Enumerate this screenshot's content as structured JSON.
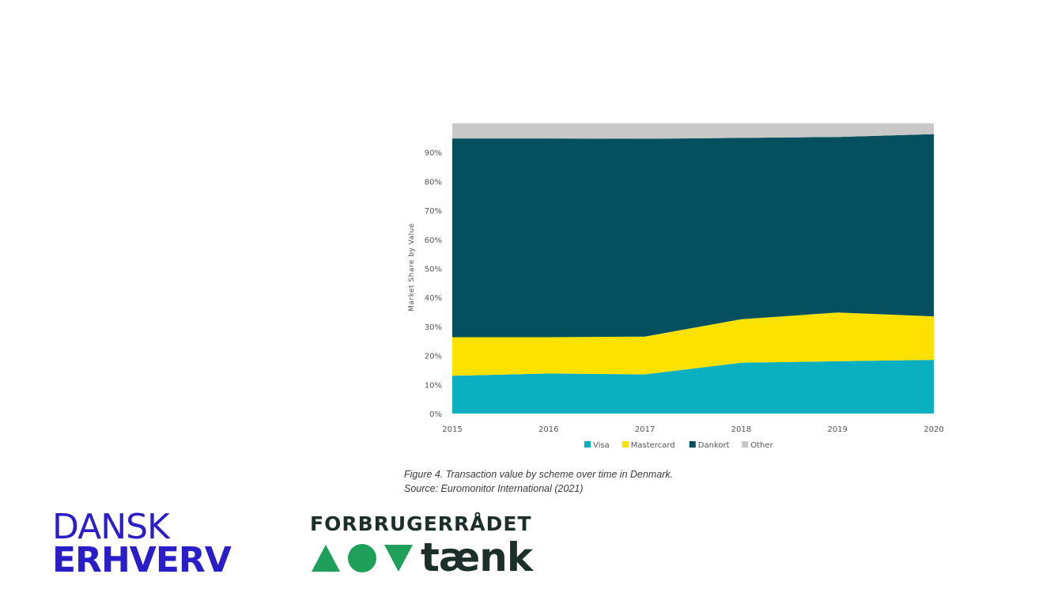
{
  "chart_data": {
    "type": "area",
    "stacked": true,
    "x": [
      "2015",
      "2016",
      "2017",
      "2018",
      "2019",
      "2020"
    ],
    "ylabel": "Market Share by Value",
    "ylim": [
      0,
      100
    ],
    "y_ticks": [
      "0%",
      "10%",
      "20%",
      "30%",
      "40%",
      "50%",
      "60%",
      "70%",
      "80%",
      "90%"
    ],
    "grid": false,
    "legend_position": "bottom",
    "series": [
      {
        "name": "Visa",
        "color": "#0bb0c0",
        "values": [
          13,
          13.8,
          13.5,
          17.5,
          18,
          18.5
        ]
      },
      {
        "name": "Mastercard",
        "color": "#fde200",
        "values": [
          13.3,
          12.5,
          13,
          15,
          16.8,
          15
        ]
      },
      {
        "name": "Dankort",
        "color": "#05505e",
        "values": [
          68.5,
          68.5,
          68.2,
          62.5,
          60.5,
          62.8
        ]
      },
      {
        "name": "Other",
        "color": "#c8c8c8",
        "values": [
          5.2,
          5.2,
          5.3,
          5,
          4.7,
          3.7
        ]
      }
    ]
  },
  "caption": {
    "line1": "Figure 4. Transaction value by scheme over time in Denmark.",
    "line2": "Source: Euromonitor International (2021)"
  },
  "logos": {
    "dansk_erhverv": {
      "line1": "DANSK",
      "line2": "ERHVERV",
      "color": "#2a1ec8"
    },
    "forbrugerraadet": {
      "name": "FORBRUGERRÅDET",
      "wordmark": "tænk",
      "symbol_color": "#1ea05a"
    }
  }
}
